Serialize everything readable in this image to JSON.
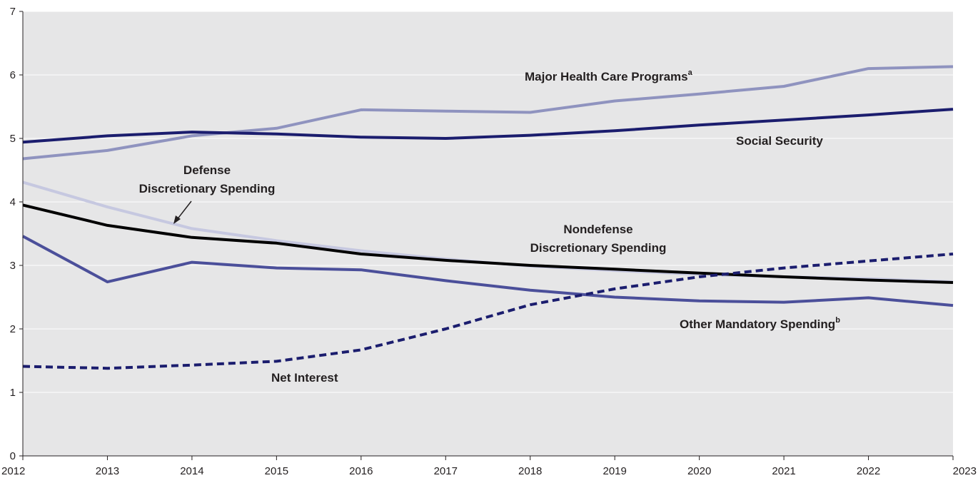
{
  "chart_data": {
    "type": "line",
    "x": [
      2012,
      2013,
      2014,
      2015,
      2016,
      2017,
      2018,
      2019,
      2020,
      2021,
      2022,
      2023
    ],
    "xlim": [
      2012,
      2023
    ],
    "ylim": [
      0,
      7
    ],
    "yticks": [
      0,
      1,
      2,
      3,
      4,
      5,
      6,
      7
    ],
    "xticks": [
      "2012",
      "2013",
      "2014",
      "2015",
      "2016",
      "2017",
      "2018",
      "2019",
      "2020",
      "2021",
      "2022",
      "2023"
    ],
    "grid": true,
    "colors": {
      "background": "#e6e6e7",
      "grid": "#ffffff",
      "axis": "#231f20",
      "health": "#8f93bf",
      "social_security": "#1b1d6e",
      "defense": "#c6c8e0",
      "nondefense": "#000000",
      "other_mandatory": "#4b4f9a",
      "net_interest": "#1b1d6e"
    },
    "series": [
      {
        "key": "health",
        "name": "Major Health Care Programs",
        "name_sup": "a",
        "values": [
          4.68,
          4.81,
          5.04,
          5.16,
          5.45,
          5.43,
          5.41,
          5.59,
          5.7,
          5.82,
          6.1,
          6.13
        ],
        "style": "solid"
      },
      {
        "key": "social_security",
        "name": "Social Security",
        "name_sup": "",
        "values": [
          4.94,
          5.04,
          5.1,
          5.07,
          5.02,
          5.0,
          5.05,
          5.12,
          5.21,
          5.29,
          5.37,
          5.46
        ],
        "style": "solid"
      },
      {
        "key": "defense",
        "name": "Defense Discretionary Spending",
        "name_lines": [
          "Defense",
          "Discretionary Spending"
        ],
        "name_sup": "",
        "values": [
          4.31,
          3.92,
          3.58,
          3.39,
          3.23,
          3.1,
          2.99,
          2.92,
          2.86,
          2.82,
          2.79,
          2.74
        ],
        "style": "solid"
      },
      {
        "key": "nondefense",
        "name": "Nondefense Discretionary Spending",
        "name_lines": [
          "Nondefense",
          "Discretionary Spending"
        ],
        "name_sup": "",
        "values": [
          3.95,
          3.63,
          3.44,
          3.35,
          3.18,
          3.08,
          3.0,
          2.94,
          2.88,
          2.82,
          2.77,
          2.73
        ],
        "style": "solid"
      },
      {
        "key": "other_mandatory",
        "name": "Other Mandatory Spending",
        "name_sup": "b",
        "values": [
          3.46,
          2.74,
          3.05,
          2.96,
          2.93,
          2.76,
          2.61,
          2.5,
          2.44,
          2.42,
          2.49,
          2.37
        ],
        "style": "solid"
      },
      {
        "key": "net_interest",
        "name": "Net Interest",
        "name_sup": "",
        "values": [
          1.41,
          1.38,
          1.43,
          1.49,
          1.67,
          2.0,
          2.38,
          2.63,
          2.82,
          2.96,
          3.07,
          3.18
        ],
        "style": "dashed"
      }
    ]
  }
}
